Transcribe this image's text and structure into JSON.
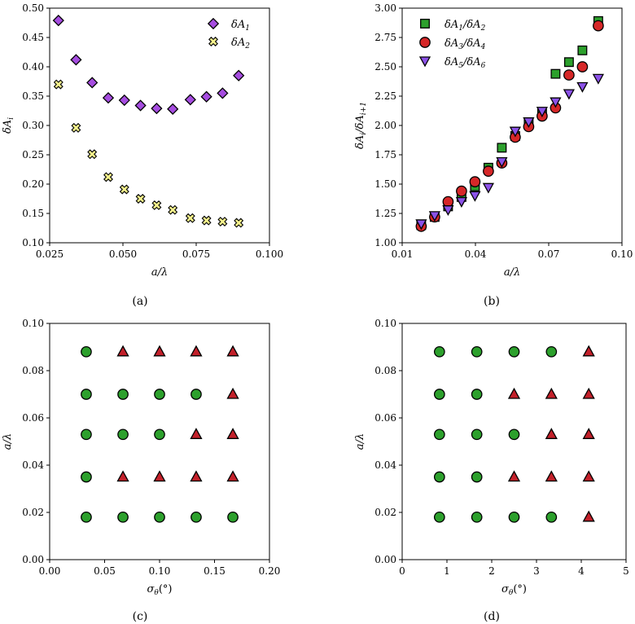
{
  "chart_data": [
    {
      "type": "scatter",
      "caption": "(a)",
      "xlabel": "a/λ",
      "ylabel": "δA",
      "ylabel_sub": "i",
      "xlim": [
        0.025,
        0.1
      ],
      "ylim": [
        0.1,
        0.5
      ],
      "xticks": [
        "0.025",
        "0.050",
        "0.075",
        "0.100"
      ],
      "yticks": [
        "0.10",
        "0.15",
        "0.20",
        "0.25",
        "0.30",
        "0.35",
        "0.40",
        "0.45",
        "0.50"
      ],
      "legend": "top-right",
      "series": [
        {
          "name": "δA",
          "sub": "1",
          "marker": "diamond",
          "color": "#a64de0",
          "x": [
            0.028,
            0.034,
            0.0395,
            0.045,
            0.0505,
            0.056,
            0.0615,
            0.067,
            0.073,
            0.0785,
            0.084,
            0.0895
          ],
          "y": [
            0.479,
            0.412,
            0.373,
            0.347,
            0.343,
            0.334,
            0.329,
            0.328,
            0.344,
            0.349,
            0.355,
            0.385
          ]
        },
        {
          "name": "δA",
          "sub": "2",
          "marker": "x",
          "color": "#f4f18c",
          "x": [
            0.028,
            0.034,
            0.0395,
            0.045,
            0.0505,
            0.056,
            0.0615,
            0.067,
            0.073,
            0.0785,
            0.084,
            0.0895
          ],
          "y": [
            0.37,
            0.296,
            0.251,
            0.212,
            0.191,
            0.175,
            0.164,
            0.156,
            0.142,
            0.138,
            0.136,
            0.134
          ]
        }
      ]
    },
    {
      "type": "scatter",
      "caption": "(b)",
      "xlabel": "a/λ",
      "ylabel": "δA",
      "ylabel_sub": "i",
      "ylabel_mid": "/δA",
      "ylabel_sub2": "i+1",
      "xlim": [
        0.01,
        0.1
      ],
      "ylim": [
        1.0,
        3.0
      ],
      "xticks": [
        "0.01",
        "0.04",
        "0.07",
        "0.10"
      ],
      "yticks": [
        "1.00",
        "1.25",
        "1.50",
        "1.75",
        "2.00",
        "2.25",
        "2.50",
        "2.75",
        "3.00"
      ],
      "legend": "top-left",
      "series": [
        {
          "name": "δA",
          "sub": "1",
          "name2": "/δA",
          "sub2": "2",
          "marker": "square",
          "color": "#2ca02c",
          "x": [
            0.0178,
            0.0233,
            0.0288,
            0.0343,
            0.0398,
            0.0453,
            0.0508,
            0.0563,
            0.0618,
            0.0673,
            0.0728,
            0.0783,
            0.0838,
            0.0903
          ],
          "y": [
            1.15,
            1.22,
            1.31,
            1.39,
            1.48,
            1.64,
            1.81,
            1.91,
            2.02,
            2.1,
            2.44,
            2.54,
            2.64,
            2.89
          ]
        },
        {
          "name": "δA",
          "sub": "3",
          "name2": "/δA",
          "sub2": "4",
          "marker": "circle",
          "color": "#d62728",
          "x": [
            0.0178,
            0.0233,
            0.0288,
            0.0343,
            0.0398,
            0.0453,
            0.0508,
            0.0563,
            0.0618,
            0.0673,
            0.0728,
            0.0783,
            0.0838,
            0.0903
          ],
          "y": [
            1.14,
            1.22,
            1.35,
            1.44,
            1.52,
            1.61,
            1.68,
            1.9,
            1.99,
            2.08,
            2.15,
            2.43,
            2.5,
            2.85
          ]
        },
        {
          "name": "δA",
          "sub": "5",
          "name2": "/δA",
          "sub2": "6",
          "marker": "triangle-down",
          "color": "#8c52e8",
          "x": [
            0.0178,
            0.0233,
            0.0288,
            0.0343,
            0.0398,
            0.0453,
            0.0508,
            0.0563,
            0.0618,
            0.0673,
            0.0728,
            0.0783,
            0.0838,
            0.0903
          ],
          "y": [
            1.16,
            1.23,
            1.28,
            1.35,
            1.4,
            1.47,
            1.69,
            1.95,
            2.03,
            2.12,
            2.2,
            2.27,
            2.33,
            2.4
          ]
        }
      ]
    },
    {
      "type": "scatter",
      "caption": "(c)",
      "xlabel": "σ",
      "xlabel_sub": "θ",
      "xlabel_tail": "(°)",
      "ylabel": "a/λ",
      "xlim": [
        0.0,
        0.2
      ],
      "ylim": [
        0.0,
        0.1
      ],
      "xticks": [
        "0.00",
        "0.05",
        "0.10",
        "0.15",
        "0.20"
      ],
      "yticks": [
        "0.00",
        "0.02",
        "0.04",
        "0.06",
        "0.08",
        "0.10"
      ],
      "series": [
        {
          "marker": "circle",
          "color": "#2ca02c",
          "x": [
            0.0333,
            0.0333,
            0.0333,
            0.0333,
            0.0333,
            0.0667,
            0.0667,
            0.0667,
            0.1,
            0.1,
            0.1,
            0.1333,
            0.1333,
            0.1667
          ],
          "y": [
            0.018,
            0.035,
            0.053,
            0.07,
            0.088,
            0.018,
            0.053,
            0.07,
            0.018,
            0.053,
            0.07,
            0.018,
            0.07,
            0.018
          ]
        },
        {
          "marker": "triangle-up",
          "color": "#c3202a",
          "x": [
            0.0667,
            0.0667,
            0.1,
            0.1,
            0.1333,
            0.1333,
            0.1333,
            0.1667,
            0.1667,
            0.1667,
            0.1667
          ],
          "y": [
            0.035,
            0.088,
            0.035,
            0.088,
            0.035,
            0.053,
            0.088,
            0.035,
            0.053,
            0.07,
            0.088
          ]
        }
      ]
    },
    {
      "type": "scatter",
      "caption": "(d)",
      "xlabel": "σ",
      "xlabel_sub": "θ",
      "xlabel_tail": "(°)",
      "ylabel": "a/λ",
      "xlim": [
        0,
        5
      ],
      "ylim": [
        0.0,
        0.1
      ],
      "xticks": [
        "0",
        "1",
        "2",
        "3",
        "4",
        "5"
      ],
      "yticks": [
        "0.00",
        "0.02",
        "0.04",
        "0.06",
        "0.08",
        "0.10"
      ],
      "series": [
        {
          "marker": "circle",
          "color": "#2ca02c",
          "x": [
            0.833,
            0.833,
            0.833,
            0.833,
            0.833,
            1.667,
            1.667,
            1.667,
            1.667,
            1.667,
            2.5,
            2.5,
            2.5,
            3.333,
            3.333
          ],
          "y": [
            0.018,
            0.035,
            0.053,
            0.07,
            0.088,
            0.018,
            0.035,
            0.053,
            0.07,
            0.088,
            0.018,
            0.053,
            0.088,
            0.018,
            0.088
          ]
        },
        {
          "marker": "triangle-up",
          "color": "#c3202a",
          "x": [
            2.5,
            2.5,
            3.333,
            3.333,
            3.333,
            4.167,
            4.167,
            4.167,
            4.167,
            4.167
          ],
          "y": [
            0.035,
            0.07,
            0.035,
            0.053,
            0.07,
            0.018,
            0.035,
            0.053,
            0.07,
            0.088
          ]
        }
      ]
    }
  ]
}
